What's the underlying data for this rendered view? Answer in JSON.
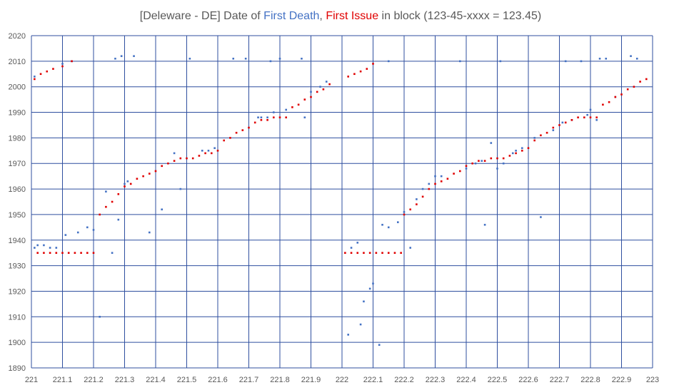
{
  "chart_data": {
    "type": "scatter",
    "title_parts": {
      "prefix": "[Deleware - DE] Date of ",
      "death": "First Death",
      "sep": ", ",
      "issue": "First Issue",
      "suffix": " in block (123-45-xxxx = 123.45)"
    },
    "xlim": [
      221,
      223
    ],
    "ylim": [
      1890,
      2020
    ],
    "x_ticks": [
      221,
      221.1,
      221.2,
      221.3,
      221.4,
      221.5,
      221.6,
      221.7,
      221.8,
      221.9,
      222,
      222.1,
      222.2,
      222.3,
      222.4,
      222.5,
      222.6,
      222.7,
      222.8,
      222.9,
      223
    ],
    "y_ticks": [
      1890,
      1900,
      1910,
      1920,
      1930,
      1940,
      1950,
      1960,
      1970,
      1980,
      1990,
      2000,
      2010,
      2020
    ],
    "grid": true,
    "legend": "none",
    "colors": {
      "first_death": "#4472c4",
      "first_issue": "#e00000",
      "grid": "#2f4f9f",
      "title_text": "#595959"
    },
    "series": [
      {
        "name": "First Death",
        "points": [
          [
            221.01,
            1937
          ],
          [
            221.01,
            2004
          ],
          [
            221.02,
            1938
          ],
          [
            221.04,
            1938
          ],
          [
            221.06,
            1937
          ],
          [
            221.08,
            1937
          ],
          [
            221.1,
            2009
          ],
          [
            221.11,
            1942
          ],
          [
            221.13,
            2010
          ],
          [
            221.15,
            1943
          ],
          [
            221.18,
            1945
          ],
          [
            221.2,
            1944
          ],
          [
            221.22,
            1910
          ],
          [
            221.24,
            1959
          ],
          [
            221.26,
            1935
          ],
          [
            221.27,
            2011
          ],
          [
            221.28,
            1948
          ],
          [
            221.29,
            2012
          ],
          [
            221.3,
            1962
          ],
          [
            221.31,
            1963
          ],
          [
            221.33,
            2012
          ],
          [
            221.38,
            1943
          ],
          [
            221.42,
            1952
          ],
          [
            221.46,
            1974
          ],
          [
            221.48,
            1960
          ],
          [
            221.51,
            2011
          ],
          [
            221.55,
            1975
          ],
          [
            221.57,
            1975
          ],
          [
            221.59,
            1976
          ],
          [
            221.65,
            2011
          ],
          [
            221.69,
            2011
          ],
          [
            221.73,
            1988
          ],
          [
            221.74,
            1988
          ],
          [
            221.76,
            1988
          ],
          [
            221.77,
            2010
          ],
          [
            221.78,
            1990
          ],
          [
            221.8,
            2011
          ],
          [
            221.82,
            1991
          ],
          [
            221.87,
            2011
          ],
          [
            221.88,
            1988
          ],
          [
            221.9,
            1998
          ],
          [
            221.93,
            2000
          ],
          [
            221.95,
            2002
          ],
          [
            222.02,
            1903
          ],
          [
            222.03,
            1937
          ],
          [
            222.05,
            1939
          ],
          [
            222.06,
            1907
          ],
          [
            222.07,
            1916
          ],
          [
            222.09,
            1921
          ],
          [
            222.1,
            1923
          ],
          [
            222.12,
            1899
          ],
          [
            222.13,
            1946
          ],
          [
            222.15,
            2010
          ],
          [
            222.15,
            1945
          ],
          [
            222.18,
            1947
          ],
          [
            222.2,
            1951
          ],
          [
            222.22,
            1937
          ],
          [
            222.24,
            1956
          ],
          [
            222.26,
            1960
          ],
          [
            222.28,
            1962
          ],
          [
            222.3,
            1965
          ],
          [
            222.32,
            1965
          ],
          [
            222.38,
            2010
          ],
          [
            222.4,
            1968
          ],
          [
            222.43,
            1970
          ],
          [
            222.45,
            1971
          ],
          [
            222.46,
            1946
          ],
          [
            222.48,
            1978
          ],
          [
            222.5,
            1968
          ],
          [
            222.51,
            2010
          ],
          [
            222.52,
            1970
          ],
          [
            222.55,
            1974
          ],
          [
            222.56,
            1975
          ],
          [
            222.58,
            1976
          ],
          [
            222.62,
            1980
          ],
          [
            222.64,
            1949
          ],
          [
            222.68,
            1983
          ],
          [
            222.71,
            1986
          ],
          [
            222.72,
            2010
          ],
          [
            222.74,
            1987
          ],
          [
            222.77,
            2010
          ],
          [
            222.79,
            1989
          ],
          [
            222.8,
            1991
          ],
          [
            222.82,
            1987
          ],
          [
            222.83,
            2011
          ],
          [
            222.85,
            2011
          ],
          [
            222.88,
            1996
          ],
          [
            222.93,
            2012
          ],
          [
            222.95,
            2011
          ]
        ]
      },
      {
        "name": "First Issue",
        "points": [
          [
            221.01,
            2003
          ],
          [
            221.02,
            1935
          ],
          [
            221.03,
            2005
          ],
          [
            221.04,
            1935
          ],
          [
            221.05,
            2006
          ],
          [
            221.06,
            1935
          ],
          [
            221.07,
            2007
          ],
          [
            221.08,
            1935
          ],
          [
            221.1,
            2008
          ],
          [
            221.1,
            1935
          ],
          [
            221.12,
            1935
          ],
          [
            221.13,
            2010
          ],
          [
            221.14,
            1935
          ],
          [
            221.16,
            1935
          ],
          [
            221.18,
            1935
          ],
          [
            221.2,
            1935
          ],
          [
            221.22,
            1950
          ],
          [
            221.24,
            1953
          ],
          [
            221.26,
            1955
          ],
          [
            221.28,
            1958
          ],
          [
            221.3,
            1961
          ],
          [
            221.32,
            1962
          ],
          [
            221.34,
            1964
          ],
          [
            221.36,
            1965
          ],
          [
            221.38,
            1966
          ],
          [
            221.4,
            1967
          ],
          [
            221.42,
            1969
          ],
          [
            221.44,
            1970
          ],
          [
            221.46,
            1971
          ],
          [
            221.48,
            1972
          ],
          [
            221.5,
            1972
          ],
          [
            221.52,
            1972
          ],
          [
            221.54,
            1973
          ],
          [
            221.56,
            1974
          ],
          [
            221.58,
            1974
          ],
          [
            221.6,
            1975
          ],
          [
            221.62,
            1979
          ],
          [
            221.64,
            1980
          ],
          [
            221.66,
            1982
          ],
          [
            221.68,
            1983
          ],
          [
            221.7,
            1984
          ],
          [
            221.72,
            1986
          ],
          [
            221.74,
            1987
          ],
          [
            221.76,
            1987
          ],
          [
            221.78,
            1988
          ],
          [
            221.8,
            1988
          ],
          [
            221.82,
            1988
          ],
          [
            221.84,
            1992
          ],
          [
            221.86,
            1993
          ],
          [
            221.88,
            1995
          ],
          [
            221.9,
            1996
          ],
          [
            221.92,
            1998
          ],
          [
            221.94,
            1999
          ],
          [
            221.96,
            2001
          ],
          [
            222.01,
            1935
          ],
          [
            222.02,
            2004
          ],
          [
            222.03,
            1935
          ],
          [
            222.04,
            2005
          ],
          [
            222.05,
            1935
          ],
          [
            222.06,
            2006
          ],
          [
            222.07,
            1935
          ],
          [
            222.08,
            2007
          ],
          [
            222.09,
            1935
          ],
          [
            222.1,
            2009
          ],
          [
            222.11,
            1935
          ],
          [
            222.13,
            1935
          ],
          [
            222.15,
            1935
          ],
          [
            222.17,
            1935
          ],
          [
            222.19,
            1935
          ],
          [
            222.2,
            1950
          ],
          [
            222.22,
            1952
          ],
          [
            222.24,
            1954
          ],
          [
            222.26,
            1957
          ],
          [
            222.28,
            1960
          ],
          [
            222.3,
            1962
          ],
          [
            222.32,
            1963
          ],
          [
            222.34,
            1964
          ],
          [
            222.36,
            1966
          ],
          [
            222.38,
            1967
          ],
          [
            222.4,
            1969
          ],
          [
            222.42,
            1970
          ],
          [
            222.44,
            1971
          ],
          [
            222.46,
            1971
          ],
          [
            222.48,
            1972
          ],
          [
            222.5,
            1972
          ],
          [
            222.52,
            1972
          ],
          [
            222.54,
            1973
          ],
          [
            222.56,
            1974
          ],
          [
            222.58,
            1975
          ],
          [
            222.6,
            1976
          ],
          [
            222.62,
            1979
          ],
          [
            222.64,
            1981
          ],
          [
            222.66,
            1982
          ],
          [
            222.68,
            1984
          ],
          [
            222.7,
            1985
          ],
          [
            222.72,
            1986
          ],
          [
            222.74,
            1987
          ],
          [
            222.76,
            1988
          ],
          [
            222.78,
            1988
          ],
          [
            222.8,
            1988
          ],
          [
            222.82,
            1988
          ],
          [
            222.84,
            1993
          ],
          [
            222.86,
            1994
          ],
          [
            222.88,
            1996
          ],
          [
            222.9,
            1997
          ],
          [
            222.92,
            1999
          ],
          [
            222.94,
            2000
          ],
          [
            222.96,
            2002
          ],
          [
            222.98,
            2003
          ]
        ]
      }
    ]
  }
}
